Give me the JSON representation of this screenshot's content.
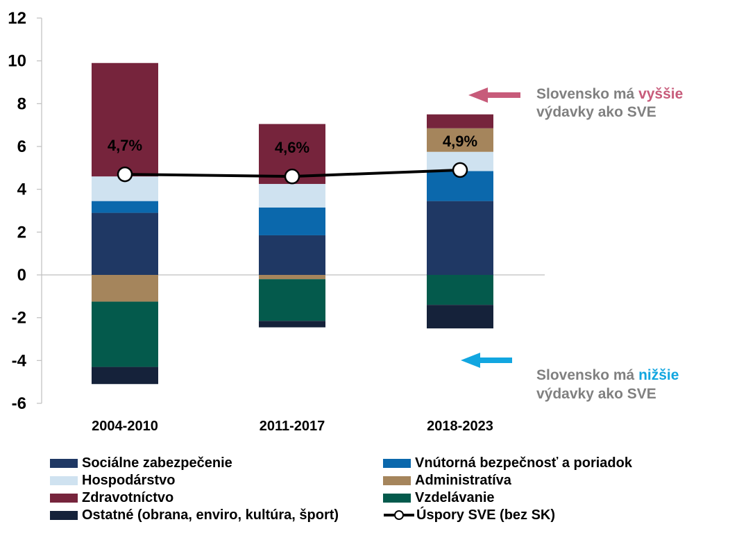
{
  "chart_data": {
    "type": "bar",
    "stacked": true,
    "categories": [
      "2004-2010",
      "2011-2017",
      "2018-2023"
    ],
    "ylim": [
      -6,
      12
    ],
    "yticks": [
      12,
      10,
      8,
      6,
      4,
      2,
      0,
      -2,
      -4,
      -6
    ],
    "series": [
      {
        "key": "soc",
        "name": "Sociálne zabezpečenie",
        "color": "#1f3864",
        "values": [
          2.9,
          1.85,
          3.45
        ]
      },
      {
        "key": "vnu",
        "name": "Vnútorná bezpečnosť a poriadok",
        "color": "#0b68ac",
        "values": [
          0.55,
          1.3,
          1.4
        ]
      },
      {
        "key": "hos",
        "name": "Hospodárstvo",
        "color": "#cfe2f0",
        "values": [
          1.15,
          1.1,
          0.9
        ]
      },
      {
        "key": "adm",
        "name": "Administratíva",
        "color": "#a5855c",
        "values": [
          -1.25,
          -0.2,
          1.1
        ]
      },
      {
        "key": "zdr",
        "name": "Zdravotníctvo",
        "color": "#76243c",
        "values": [
          5.3,
          2.8,
          0.65
        ]
      },
      {
        "key": "vzd",
        "name": "Vzdelávanie",
        "color": "#045a4c",
        "values": [
          -3.05,
          -1.95,
          -1.4
        ]
      },
      {
        "key": "ost",
        "name": "Ostatné (obrana, enviro, kultúra, šport)",
        "color": "#15223a",
        "values": [
          -0.8,
          -0.3,
          -1.1
        ]
      }
    ],
    "line": {
      "name": "Úspory SVE (bez SK)",
      "values": [
        4.7,
        4.6,
        4.9
      ],
      "labels": [
        "4,7%",
        "4,6%",
        "4,9%"
      ]
    }
  },
  "annotations": {
    "higher": {
      "prefix": "Slovensko má ",
      "highlight": "vyššie",
      "line2": "výdavky ako SVE",
      "color": "#c75b7a"
    },
    "lower": {
      "prefix": "Slovensko má ",
      "highlight": "nižšie",
      "line2": "výdavky ako SVE",
      "color": "#12a6e0"
    }
  },
  "legend": [
    {
      "key": "soc",
      "label": "Sociálne zabezpečenie",
      "color": "#1f3864"
    },
    {
      "key": "vnu",
      "label": "Vnútorná bezpečnosť a poriadok",
      "color": "#0b68ac"
    },
    {
      "key": "hos",
      "label": "Hospodárstvo",
      "color": "#cfe2f0"
    },
    {
      "key": "adm",
      "label": "Administratíva",
      "color": "#a5855c"
    },
    {
      "key": "zdr",
      "label": "Zdravotníctvo",
      "color": "#76243c"
    },
    {
      "key": "vzd",
      "label": "Vzdelávanie",
      "color": "#045a4c"
    },
    {
      "key": "ost",
      "label": "Ostatné (obrana, enviro, kultúra, šport)",
      "color": "#15223a"
    },
    {
      "key": "line",
      "label": "Úspory SVE (bez SK)",
      "color": "#000000",
      "line": true
    }
  ]
}
